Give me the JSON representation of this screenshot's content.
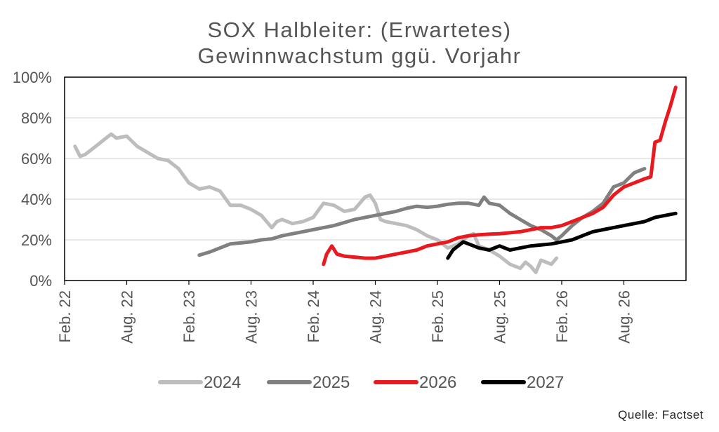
{
  "chart_data": {
    "type": "line",
    "title_lines": [
      "SOX Halbleiter: (Erwartetes)",
      "Gewinnwachstum ggü. Vorjahr"
    ],
    "xlabel": "",
    "ylabel": "",
    "x_ticks": [
      "Feb. 22",
      "Aug. 22",
      "Feb. 23",
      "Aug. 23",
      "Feb. 24",
      "Aug. 24",
      "Feb. 25",
      "Aug. 25",
      "Feb. 26",
      "Aug. 26"
    ],
    "y_ticks": [
      "0%",
      "20%",
      "40%",
      "60%",
      "80%",
      "100%"
    ],
    "ylim": [
      0,
      100
    ],
    "x_unit": "months since Feb. 22",
    "xlim": [
      0,
      60
    ],
    "grid": "horizontal",
    "legend_position": "bottom",
    "series": [
      {
        "name": "2024",
        "color": "#bdbdbd",
        "points": [
          [
            1,
            66
          ],
          [
            1.5,
            61
          ],
          [
            2,
            62
          ],
          [
            3,
            66
          ],
          [
            4,
            70
          ],
          [
            4.5,
            72
          ],
          [
            5,
            70
          ],
          [
            6,
            71
          ],
          [
            7,
            66
          ],
          [
            8,
            63
          ],
          [
            9,
            60
          ],
          [
            10,
            59
          ],
          [
            11,
            55
          ],
          [
            12,
            48
          ],
          [
            13,
            45
          ],
          [
            14,
            46
          ],
          [
            15,
            44
          ],
          [
            16,
            37
          ],
          [
            17,
            37
          ],
          [
            18,
            35
          ],
          [
            19,
            32
          ],
          [
            20,
            26
          ],
          [
            20.5,
            29
          ],
          [
            21,
            30
          ],
          [
            22,
            28
          ],
          [
            23,
            29
          ],
          [
            24,
            31
          ],
          [
            25,
            38
          ],
          [
            26,
            37
          ],
          [
            27,
            34
          ],
          [
            28,
            35
          ],
          [
            29,
            41
          ],
          [
            29.5,
            42
          ],
          [
            30,
            38
          ],
          [
            30.5,
            30
          ],
          [
            31,
            29
          ],
          [
            32,
            28
          ],
          [
            33,
            27
          ],
          [
            34,
            25
          ],
          [
            35,
            22
          ],
          [
            36,
            20
          ],
          [
            37,
            16
          ],
          [
            38,
            18
          ],
          [
            39,
            22
          ],
          [
            39.5,
            23
          ],
          [
            40,
            17
          ],
          [
            41,
            15
          ],
          [
            42,
            12
          ],
          [
            43,
            8
          ],
          [
            44,
            6
          ],
          [
            44.5,
            9
          ],
          [
            45,
            7
          ],
          [
            45.5,
            4
          ],
          [
            46,
            10
          ],
          [
            47,
            8
          ],
          [
            47.5,
            11
          ]
        ]
      },
      {
        "name": "2025",
        "color": "#808080",
        "points": [
          [
            13,
            12.5
          ],
          [
            14,
            14
          ],
          [
            15,
            16
          ],
          [
            16,
            18
          ],
          [
            17,
            18.5
          ],
          [
            18,
            19
          ],
          [
            19,
            20
          ],
          [
            20,
            20.5
          ],
          [
            21,
            22
          ],
          [
            22,
            23
          ],
          [
            23,
            24
          ],
          [
            24,
            25
          ],
          [
            25,
            26
          ],
          [
            26,
            27
          ],
          [
            27,
            28.5
          ],
          [
            28,
            30
          ],
          [
            29,
            31
          ],
          [
            30,
            32
          ],
          [
            31,
            33
          ],
          [
            32,
            34
          ],
          [
            33,
            35.5
          ],
          [
            34,
            36.5
          ],
          [
            35,
            36
          ],
          [
            36,
            36.5
          ],
          [
            37,
            37.5
          ],
          [
            38,
            38
          ],
          [
            39,
            38
          ],
          [
            40,
            37
          ],
          [
            40.5,
            41
          ],
          [
            41,
            38
          ],
          [
            42,
            37
          ],
          [
            43,
            33
          ],
          [
            44,
            30
          ],
          [
            45,
            27
          ],
          [
            46,
            25
          ],
          [
            47,
            22
          ],
          [
            47.5,
            20
          ],
          [
            48,
            22
          ],
          [
            49,
            27
          ],
          [
            50,
            31
          ],
          [
            51,
            34
          ],
          [
            52,
            38
          ],
          [
            53,
            46
          ],
          [
            54,
            48
          ],
          [
            55,
            53
          ],
          [
            56,
            55
          ]
        ]
      },
      {
        "name": "2026",
        "color": "#e8191f",
        "points": [
          [
            25,
            8
          ],
          [
            25.3,
            13
          ],
          [
            25.8,
            17
          ],
          [
            26.3,
            13
          ],
          [
            27,
            12
          ],
          [
            28,
            11.5
          ],
          [
            29,
            11
          ],
          [
            30,
            11
          ],
          [
            31,
            12
          ],
          [
            32,
            13
          ],
          [
            33,
            14
          ],
          [
            34,
            15
          ],
          [
            35,
            17
          ],
          [
            36,
            18
          ],
          [
            37,
            19
          ],
          [
            38,
            21
          ],
          [
            39,
            22
          ],
          [
            40,
            22.5
          ],
          [
            41,
            22.8
          ],
          [
            42,
            23
          ],
          [
            43,
            23.5
          ],
          [
            44,
            24
          ],
          [
            45,
            25
          ],
          [
            46,
            26
          ],
          [
            47,
            26
          ],
          [
            48,
            27
          ],
          [
            49,
            29
          ],
          [
            50,
            31
          ],
          [
            51,
            33
          ],
          [
            52,
            36
          ],
          [
            53,
            42
          ],
          [
            54,
            46
          ],
          [
            55,
            48
          ],
          [
            56,
            50
          ],
          [
            56.6,
            51
          ],
          [
            57,
            68
          ],
          [
            57.5,
            69
          ],
          [
            58,
            78
          ],
          [
            58.5,
            86
          ],
          [
            59,
            95
          ]
        ]
      },
      {
        "name": "2027",
        "color": "#000000",
        "points": [
          [
            37,
            11
          ],
          [
            37.5,
            15
          ],
          [
            38,
            17
          ],
          [
            38.5,
            19
          ],
          [
            39,
            18
          ],
          [
            40,
            16
          ],
          [
            41,
            15
          ],
          [
            42,
            17
          ],
          [
            43,
            15
          ],
          [
            44,
            16
          ],
          [
            45,
            17
          ],
          [
            46,
            17.5
          ],
          [
            47,
            18
          ],
          [
            48,
            19
          ],
          [
            49,
            20
          ],
          [
            50,
            22
          ],
          [
            51,
            24
          ],
          [
            52,
            25
          ],
          [
            53,
            26
          ],
          [
            54,
            27
          ],
          [
            55,
            28
          ],
          [
            56,
            29
          ],
          [
            56.5,
            30
          ],
          [
            57,
            31
          ],
          [
            58,
            32
          ],
          [
            59,
            33
          ]
        ]
      }
    ]
  },
  "source": "Quelle: Factset"
}
